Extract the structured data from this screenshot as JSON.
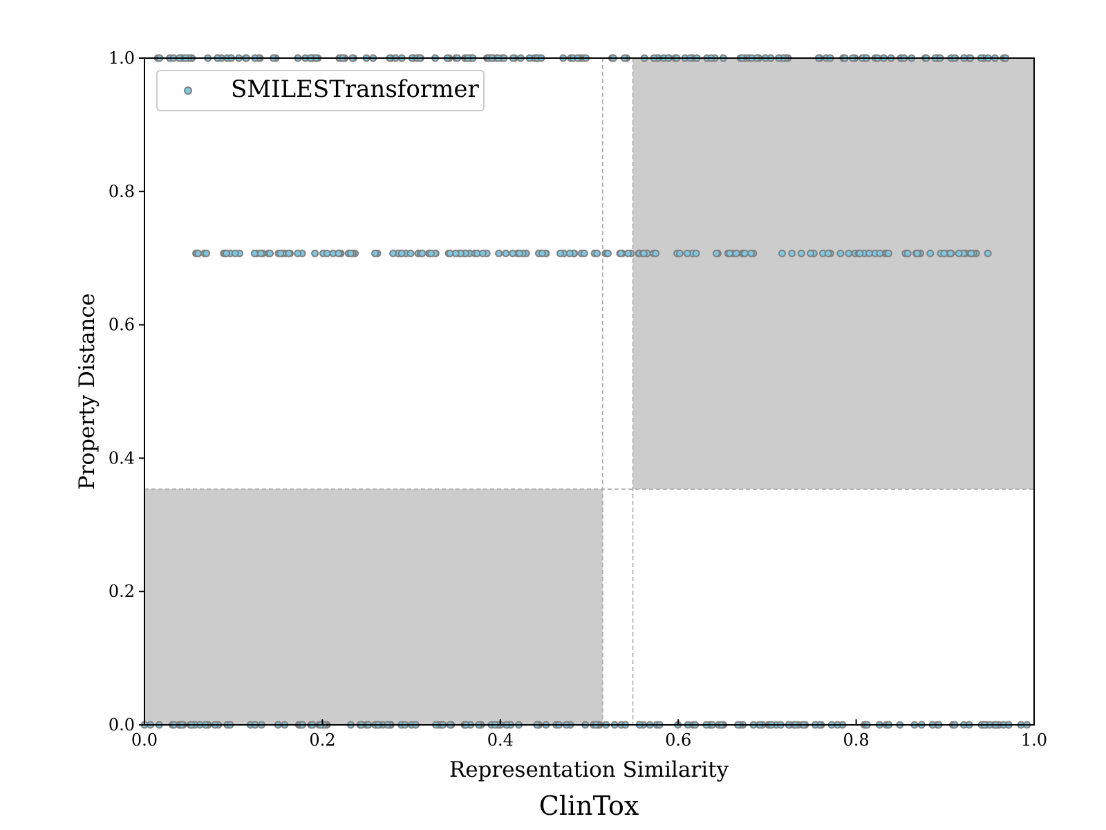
{
  "chart_data": {
    "type": "scatter",
    "title": "ClinTox",
    "xlabel": "Representation Similarity",
    "ylabel": "Property Distance",
    "xlim": [
      0.0,
      1.0
    ],
    "ylim": [
      0.0,
      1.0
    ],
    "x_ticks": [
      "0.0",
      "0.2",
      "0.4",
      "0.6",
      "0.8",
      "1.0"
    ],
    "y_ticks": [
      "0.0",
      "0.2",
      "0.4",
      "0.6",
      "0.8",
      "1.0"
    ],
    "grid": false,
    "legend_position": "top-left",
    "thresholds": {
      "x_low": 0.515,
      "x_high": 0.549,
      "y": 0.3535
    },
    "shaded_regions": [
      {
        "x": [
          0.0,
          0.515
        ],
        "y": [
          0.0,
          0.3535
        ]
      },
      {
        "x": [
          0.549,
          1.0
        ],
        "y": [
          0.3535,
          1.0
        ]
      }
    ],
    "series": [
      {
        "name": "SMILESTransformer",
        "color": "#7ec8e3",
        "edge_color": "#808080",
        "bands": [
          {
            "y": 1.0,
            "x_min": 0.015,
            "x_max": 0.968
          },
          {
            "y": 0.7071,
            "x_min": 0.058,
            "x_max": 0.948
          },
          {
            "y": 0.0,
            "x_min": 0.0,
            "x_max": 0.992
          }
        ]
      }
    ]
  },
  "legend": {
    "label": "SMILESTransformer"
  }
}
